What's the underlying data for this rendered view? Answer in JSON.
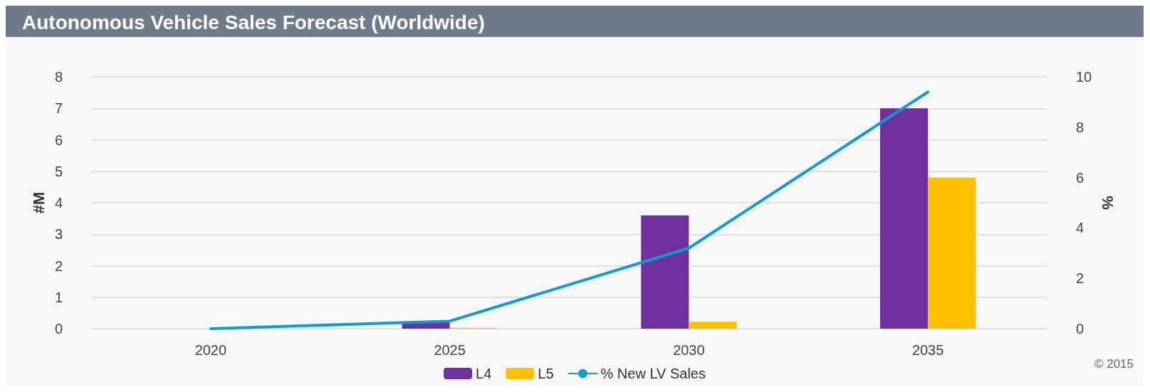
{
  "chart_data": {
    "type": "bar",
    "title": "Autonomous Vehicle Sales Forecast (Worldwide)",
    "ylabel": "#M",
    "y2label": "%",
    "categories": [
      "2020",
      "2025",
      "2030",
      "2035"
    ],
    "series": [
      {
        "name": "L4",
        "color": "#7030a0",
        "values": [
          0,
          0.22,
          3.6,
          7.0
        ]
      },
      {
        "name": "L5",
        "color": "#ffc000",
        "values": [
          0,
          0.03,
          0.22,
          4.8
        ]
      },
      {
        "name": "% New LV Sales",
        "type": "line",
        "axis": "y2",
        "color": "#0e9bd6",
        "values": [
          0,
          0.3,
          3.2,
          9.4
        ]
      }
    ],
    "ylim": [
      0,
      8
    ],
    "yticks": [
      0,
      1,
      2,
      3,
      4,
      5,
      6,
      7,
      8
    ],
    "y2lim": [
      0,
      10
    ],
    "y2ticks": [
      0,
      2,
      4,
      6,
      8,
      10
    ],
    "grid": "y",
    "legend": "bottom",
    "marker": "none",
    "annotations": [
      "© 2015"
    ]
  }
}
